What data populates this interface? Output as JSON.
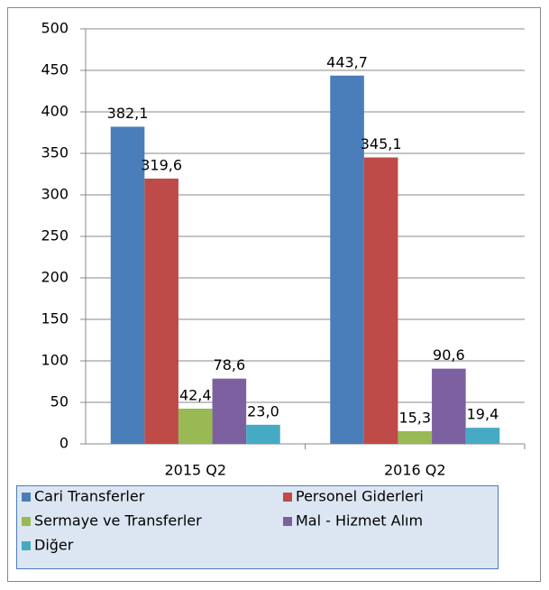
{
  "chart_data": {
    "type": "bar",
    "categories": [
      "2015 Q2",
      "2016 Q2"
    ],
    "series": [
      {
        "name": "Cari Transferler",
        "color": "#4a7ebb",
        "values": [
          382.1,
          443.7
        ],
        "value_labels": [
          "382,1",
          "443,7"
        ]
      },
      {
        "name": "Personel Giderleri",
        "color": "#be4b48",
        "values": [
          319.6,
          345.1
        ],
        "value_labels": [
          "319,6",
          "345,1"
        ]
      },
      {
        "name": "Sermaye ve Transferler",
        "color": "#98b954",
        "values": [
          42.4,
          15.3
        ],
        "value_labels": [
          "42,4",
          "15,3"
        ]
      },
      {
        "name": "Mal - Hizmet Alım",
        "color": "#7d60a0",
        "values": [
          78.6,
          90.6
        ],
        "value_labels": [
          "78,6",
          "90,6"
        ]
      },
      {
        "name": "Diğer",
        "color": "#46aac5",
        "values": [
          23.0,
          19.4
        ],
        "value_labels": [
          "23,0",
          "19,4"
        ]
      }
    ],
    "ylim": [
      0,
      500
    ],
    "yticks": [
      0,
      50,
      100,
      150,
      200,
      250,
      300,
      350,
      400,
      450,
      500
    ],
    "grid": true
  }
}
